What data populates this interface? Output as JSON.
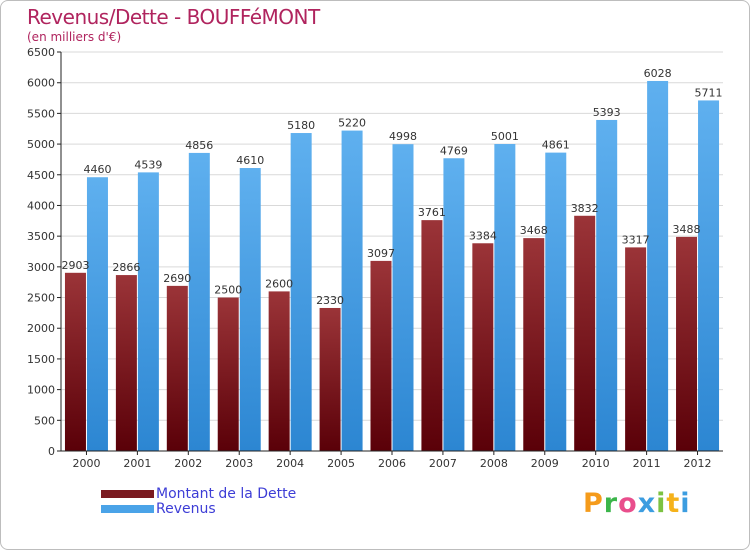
{
  "colors": {
    "title": "#b0245e",
    "legend_text": "#3d3dd6",
    "dette_top": "#9b3438",
    "dette_bottom": "#5a0008",
    "revenus_top": "#5fb0ef",
    "revenus_bottom": "#2c86d2",
    "grid": "#d9d9d9",
    "axis": "#222222"
  },
  "legend": {
    "items": [
      {
        "label": "Montant de la Dette",
        "color": "#7a1a20"
      },
      {
        "label": "Revenus",
        "color": "#4aa3e8"
      }
    ]
  },
  "logo": {
    "letters": [
      {
        "char": "P",
        "color": "#f59b1b"
      },
      {
        "char": "r",
        "color": "#3bb54a"
      },
      {
        "char": "o",
        "color": "#e94e8c"
      },
      {
        "char": "x",
        "color": "#3c9de0"
      },
      {
        "char": "i",
        "color": "#7cc242"
      },
      {
        "char": "t",
        "color": "#f5b21b"
      },
      {
        "char": "i",
        "color": "#3c9de0"
      }
    ]
  },
  "chart_data": {
    "type": "bar",
    "title": "Revenus/Dette - BOUFFéMONT",
    "subtitle": "(en milliers d'€)",
    "categories": [
      "2000",
      "2001",
      "2002",
      "2003",
      "2004",
      "2005",
      "2006",
      "2007",
      "2008",
      "2009",
      "2010",
      "2011",
      "2012"
    ],
    "series": [
      {
        "name": "Montant de la Dette",
        "values": [
          2903,
          2866,
          2690,
          2500,
          2600,
          2330,
          3097,
          3761,
          3384,
          3468,
          3832,
          3317,
          3488
        ],
        "labels": [
          "2903",
          "2866",
          "2690",
          "2500",
          "2600",
          "2330",
          "3097",
          "3761",
          "3384",
          "3468",
          "3832",
          "3317",
          "3488"
        ]
      },
      {
        "name": "Revenus",
        "values": [
          4460,
          4539,
          4856,
          4610,
          5180,
          5220,
          4998,
          4769,
          5001,
          4861,
          5393,
          6028,
          5711
        ],
        "labels": [
          "4460",
          "4539",
          "4856",
          "4610",
          "5180",
          "5220",
          "4998",
          "4769",
          "5001",
          "4861",
          "5393",
          "6028",
          "5711"
        ]
      }
    ],
    "ylim": [
      0,
      6500
    ],
    "yticks": [
      0,
      500,
      1000,
      1500,
      2000,
      2500,
      3000,
      3500,
      4000,
      4500,
      5000,
      5500,
      6000,
      6500
    ],
    "grid": true,
    "legend_position": "bottom-left"
  }
}
